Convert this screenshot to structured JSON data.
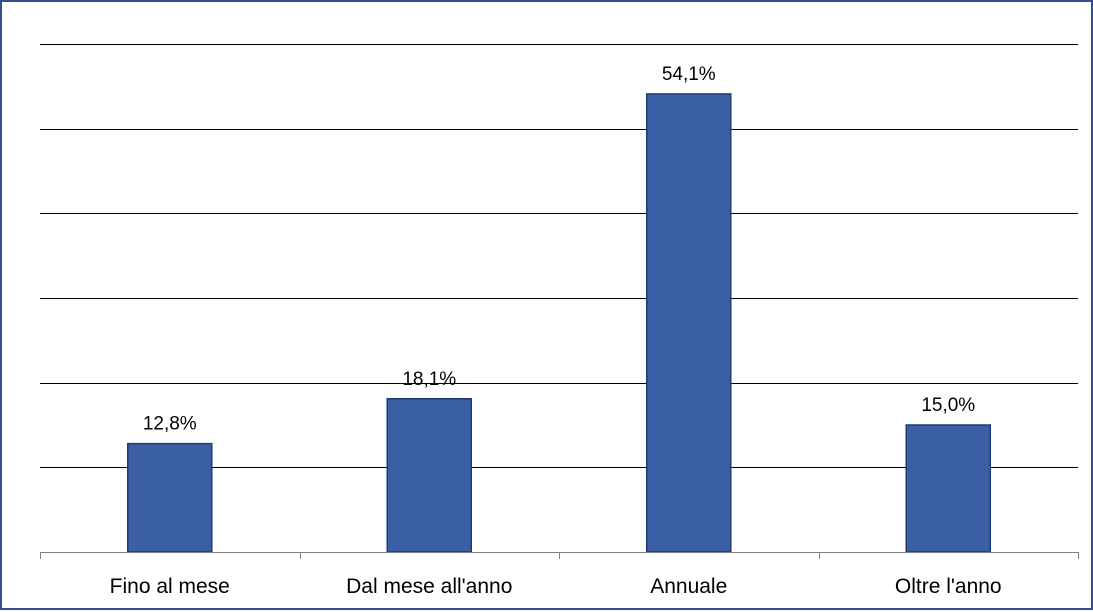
{
  "chart_data": {
    "type": "bar",
    "categories": [
      "Fino al mese",
      "Dal mese all'anno",
      "Annuale",
      "Oltre l'anno"
    ],
    "values": [
      12.8,
      18.1,
      54.1,
      15.0
    ],
    "data_labels": [
      "12,8%",
      "18,1%",
      "54,1%",
      "15,0%"
    ],
    "title": "",
    "xlabel": "",
    "ylabel": "",
    "ylim": [
      0,
      60
    ],
    "y_gridlines": [
      10,
      20,
      30,
      40,
      50,
      60
    ],
    "y_tick_labels_shown": false,
    "grid": true,
    "legend": "none",
    "colors": {
      "bar": "#3a5fa5",
      "bar_edge": "#1f3a6e",
      "frame": "#2f4f8f"
    }
  }
}
